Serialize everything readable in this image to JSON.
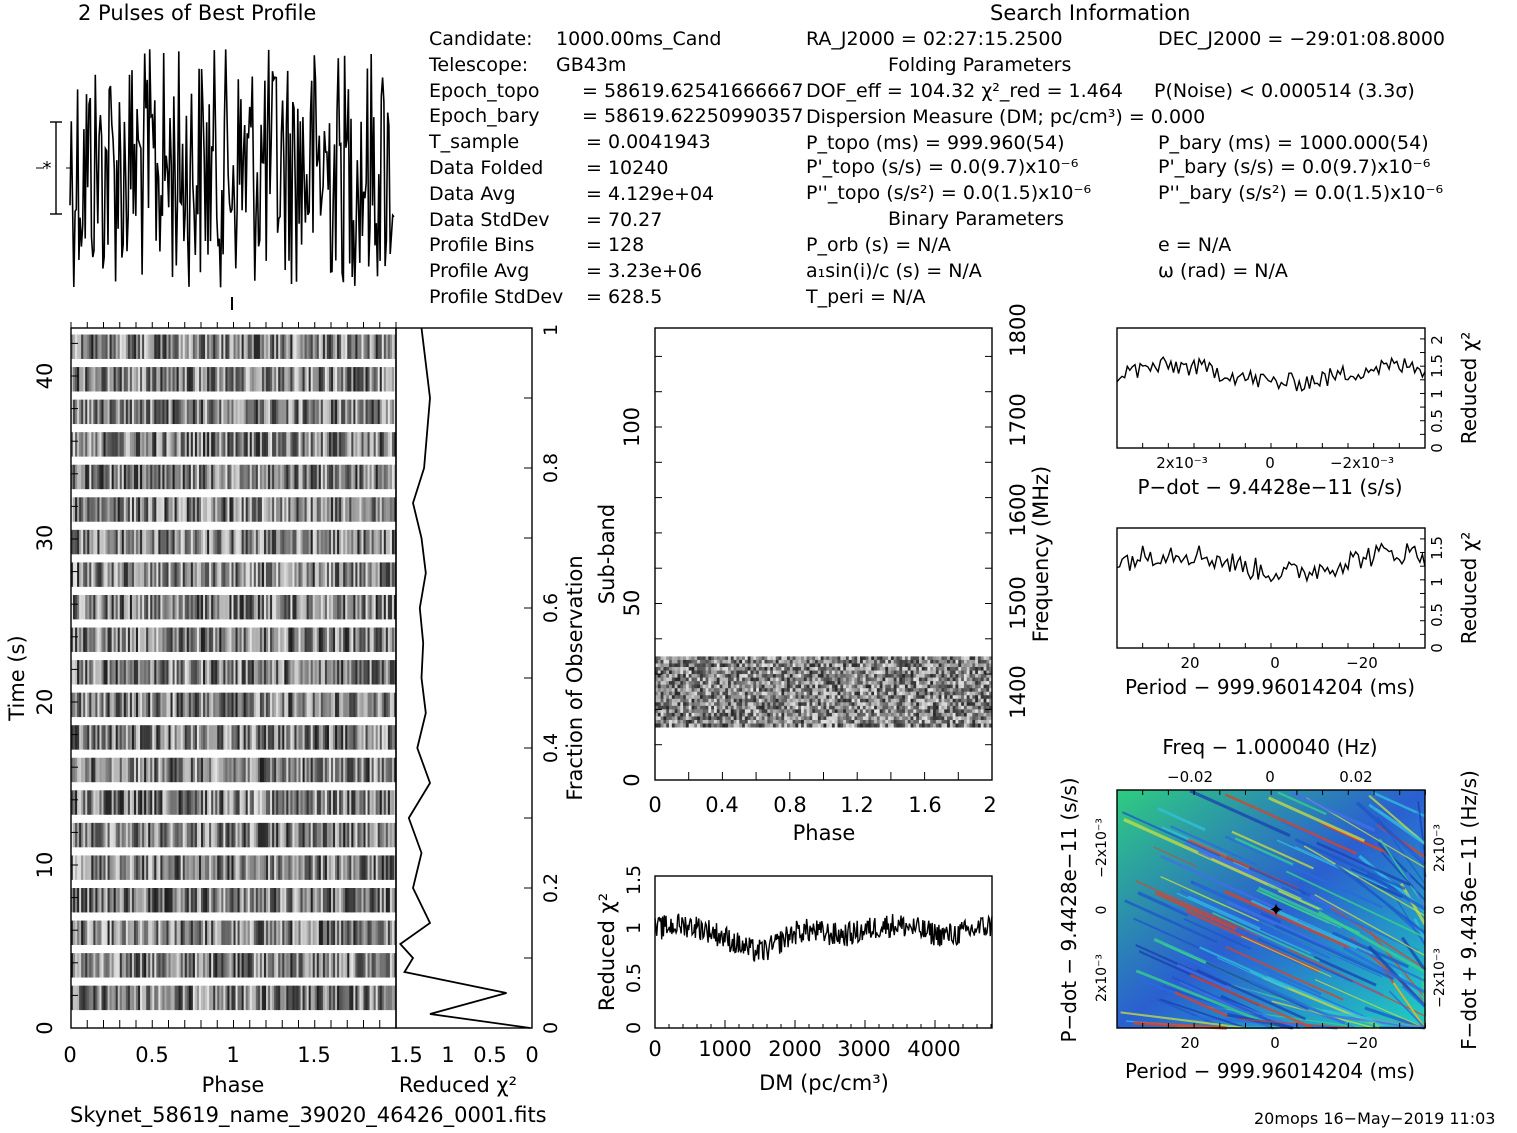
{
  "header": {
    "profile_title": "2 Pulses of Best Profile",
    "search_title": "Search Information",
    "folding_title": "Folding Parameters",
    "binary_title": "Binary Parameters"
  },
  "info_left": [
    {
      "k": "Candidate:",
      "v": "1000.00ms_Cand"
    },
    {
      "k": "Telescope:",
      "v": "GB43m"
    },
    {
      "k": "Epoch_topo",
      "v": "= 58619.62541666667"
    },
    {
      "k": "Epoch_bary",
      "v": "= 58619.62250990357"
    },
    {
      "k": "T_sample",
      "v": "=   0.0041943"
    },
    {
      "k": "Data Folded",
      "v": "=   10240"
    },
    {
      "k": "Data Avg",
      "v": "=   4.129e+04"
    },
    {
      "k": "Data StdDev",
      "v": "=   70.27"
    },
    {
      "k": "Profile Bins",
      "v": "=   128"
    },
    {
      "k": "Profile Avg",
      "v": "=   3.23e+06"
    },
    {
      "k": "Profile StdDev",
      "v": "=   628.5"
    }
  ],
  "search": {
    "ra": "RA_J2000 = 02:27:15.2500",
    "dec": "DEC_J2000 = −29:01:08.8000",
    "dof": "DOF_eff = 104.32  χ²_red = 1.464",
    "pnoise": "P(Noise) < 0.000514   (3.3σ)",
    "dm": "Dispersion Measure (DM; pc/cm³) = 0.000",
    "ptopo": "P_topo (ms) =  999.960(54)",
    "pbary": "P_bary (ms) =  1000.000(54)",
    "pdtopo": "P'_topo (s/s) = 0.0(9.7)x10⁻⁶",
    "pdbary": "P'_bary (s/s) = 0.0(9.7)x10⁻⁶",
    "pddtopo": "P''_topo (s/s²) = 0.0(1.5)x10⁻⁶",
    "pddbary": "P''_bary (s/s²) = 0.0(1.5)x10⁻⁶",
    "porb": "P_orb (s) = N/A",
    "ecc": "e = N/A",
    "a1": "a₁sin(i)/c (s) = N/A",
    "omega": "ω (rad) = N/A",
    "tperi": "T_peri = N/A"
  },
  "footer": {
    "filename": "Skynet_58619_name_39020_46426_0001.fits",
    "stamp": "20mops 16−May−2019 11:03"
  },
  "chart_data": [
    {
      "type": "line",
      "name": "profile",
      "title": "2 Pulses of Best Profile",
      "xlim": [
        0,
        2
      ],
      "note_errorbar": true
    },
    {
      "type": "heatmap",
      "name": "time-phase",
      "xlabel": "Phase",
      "ylabel": "Time (s)",
      "xlim": [
        0,
        2
      ],
      "ylim": [
        0,
        43
      ],
      "xticks": [
        "0",
        "0.5",
        "1",
        "1.5"
      ],
      "yticks": [
        "0",
        "10",
        "20",
        "30",
        "40"
      ]
    },
    {
      "type": "line",
      "name": "chi2-vs-time",
      "xlabel": "Reduced χ²",
      "ylabel": "Fraction of Observation",
      "xticks": [
        "1.5",
        "1",
        "0.5",
        "0"
      ],
      "yticks": [
        "0",
        "0.2",
        "0.4",
        "0.6",
        "0.8",
        "1"
      ],
      "x_reduced_chi2": [
        0.02,
        1.2,
        0.3,
        1.5,
        1.4,
        1.55,
        1.2,
        1.4,
        1.3,
        1.45,
        1.2,
        1.35,
        1.25,
        1.3,
        1.28,
        1.32,
        1.25,
        1.3,
        1.4,
        1.27,
        1.2,
        1.3
      ],
      "y_fraction": [
        0.0,
        0.02,
        0.05,
        0.08,
        0.1,
        0.12,
        0.15,
        0.2,
        0.25,
        0.3,
        0.35,
        0.4,
        0.45,
        0.5,
        0.55,
        0.6,
        0.65,
        0.7,
        0.75,
        0.8,
        0.9,
        1.0
      ]
    },
    {
      "type": "heatmap",
      "name": "subband-phase",
      "xlabel": "Phase",
      "ylabel": "Sub-band",
      "y2label": "Frequency (MHz)",
      "xticks": [
        "0",
        "0.4",
        "0.8",
        "1.2",
        "1.6",
        "2"
      ],
      "yticks": [
        "0",
        "50",
        "100"
      ],
      "y2ticks": [
        "1400",
        "1500",
        "1600",
        "1700",
        "1800"
      ],
      "filled_subbands": [
        15,
        35
      ],
      "ylim": [
        0,
        128
      ]
    },
    {
      "type": "line",
      "name": "dm-chi2",
      "xlabel": "DM (pc/cm³)",
      "ylabel": "Reduced χ²",
      "xticks": [
        "0",
        "1000",
        "2000",
        "3000",
        "4000"
      ],
      "yticks": [
        "0",
        "0.5",
        "1",
        "1.5"
      ],
      "xlim": [
        0,
        4900
      ],
      "ylim": [
        0,
        1.5
      ]
    },
    {
      "type": "line",
      "name": "pdot-chi2",
      "xlabel": "P−dot − 9.4428e−11 (s/s)",
      "ylabel": "Reduced χ²",
      "xticks": [
        "2x10⁻³",
        "0",
        "−2x10⁻³"
      ],
      "yticks": [
        "0",
        "0.5",
        "1",
        "1.5",
        "2"
      ],
      "ylim": [
        0,
        2.2
      ]
    },
    {
      "type": "line",
      "name": "period-chi2",
      "xlabel": "Period − 999.96014204 (ms)",
      "ylabel": "Reduced χ²",
      "xticks": [
        "20",
        "0",
        "−20"
      ],
      "yticks": [
        "0",
        "0.5",
        "1",
        "1.5"
      ],
      "ylim": [
        0,
        1.8
      ]
    },
    {
      "type": "heatmap",
      "name": "p-pdot",
      "xlabel": "Period − 999.96014204 (ms)",
      "x2label": "Freq − 1.000040 (Hz)",
      "ylabel": "P−dot − 9.4428e−11 (s/s)",
      "y2label": "F−dot + 9.4436e−11 (Hz/s)",
      "xticks": [
        "20",
        "0",
        "−20"
      ],
      "x2ticks": [
        "−0.02",
        "0",
        "0.02"
      ],
      "yticks": [
        "−2x10⁻³",
        "0",
        "2x10⁻³"
      ],
      "y2ticks": [
        "2x10⁻³",
        "0",
        "−2x10⁻³"
      ]
    }
  ]
}
